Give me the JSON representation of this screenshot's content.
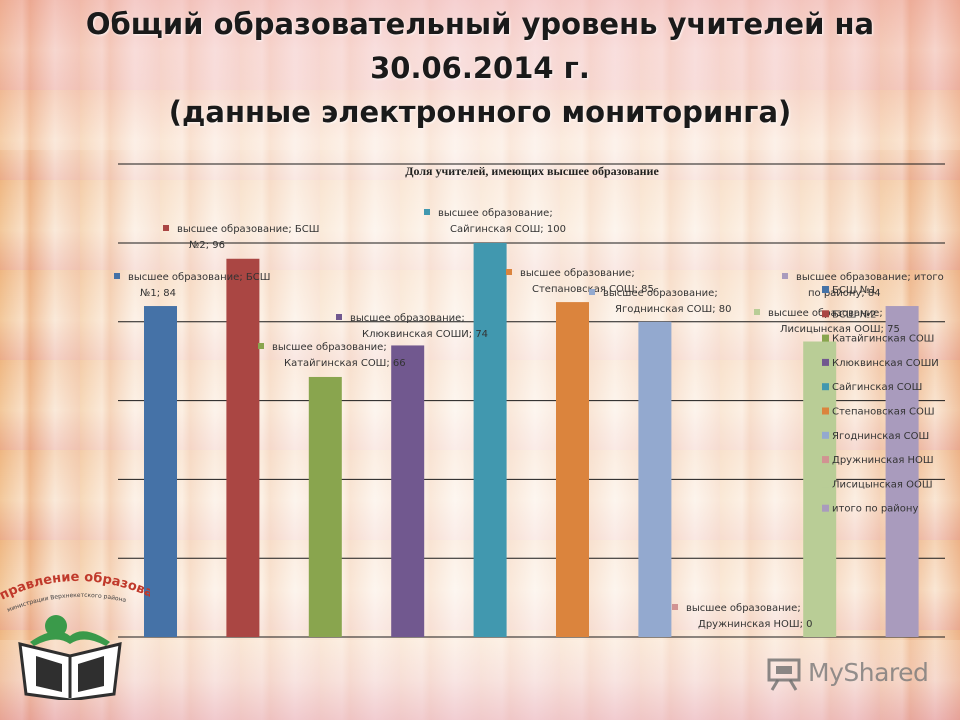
{
  "slide": {
    "title_line1": "Общий образовательный уровень учителей на",
    "title_line2": "30.06.2014 г.",
    "title_line3": "(данные электронного мониторинга)"
  },
  "logo": {
    "text_main": "правление образования",
    "text_sub": "министрации Верхнекетского района",
    "icon": "open-book-logo-icon"
  },
  "watermark": {
    "text": "MyShared",
    "icon": "presentation-board-icon"
  },
  "chart_data": {
    "type": "bar",
    "title": "Доля учителей, имеющих высшее образование",
    "ylim": [
      0,
      100
    ],
    "grid": true,
    "legend_position": "right",
    "series_name": "высшее образование",
    "categories": [
      "БСШ №1",
      "БСШ №2",
      "Катайгинская СОШ",
      "Клюквинская СОШИ",
      "Сайгинская СОШ",
      "Степановская СОШ",
      "Ягоднинская СОШ",
      "Дружнинская НОШ",
      "Лисицынская ООШ",
      "итого по району"
    ],
    "values": [
      84,
      96,
      66,
      74,
      100,
      85,
      80,
      0,
      75,
      84
    ],
    "colors": [
      "#4572A7",
      "#AA4643",
      "#89A54E",
      "#71588F",
      "#4198AF",
      "#DB843D",
      "#93A9CF",
      "#D19392",
      "#B9CD96",
      "#A99BBD"
    ],
    "data_labels": [
      [
        "высшее образование; БСШ",
        "№1; 84"
      ],
      [
        "высшее образование; БСШ",
        "№2; 96"
      ],
      [
        "высшее образование;",
        "Катайгинская СОШ; 66"
      ],
      [
        "высшее образование;",
        "Клюквинская СОШИ; 74"
      ],
      [
        "высшее образование;",
        "Сайгинская СОШ; 100"
      ],
      [
        "высшее образование;",
        "Степановская СОШ; 85"
      ],
      [
        "высшее образование;",
        "Ягоднинская СОШ; 80"
      ],
      [
        "высшее образование;",
        "Дружнинская НОШ; 0"
      ],
      [
        "высшее образование;",
        "Лисицынская ООШ; 75"
      ],
      [
        "высшее образование; итого",
        "по району; 84"
      ]
    ],
    "legend": [
      "БСШ №1",
      "БСШ №2",
      "Катайгинская СОШ",
      "Клюквинская СОШИ",
      "Сайгинская СОШ",
      "Степановская СОШ",
      "Ягоднинская СОШ",
      "Дружнинская НОШ",
      "Лисицынская ООШ",
      "итого по району"
    ]
  }
}
